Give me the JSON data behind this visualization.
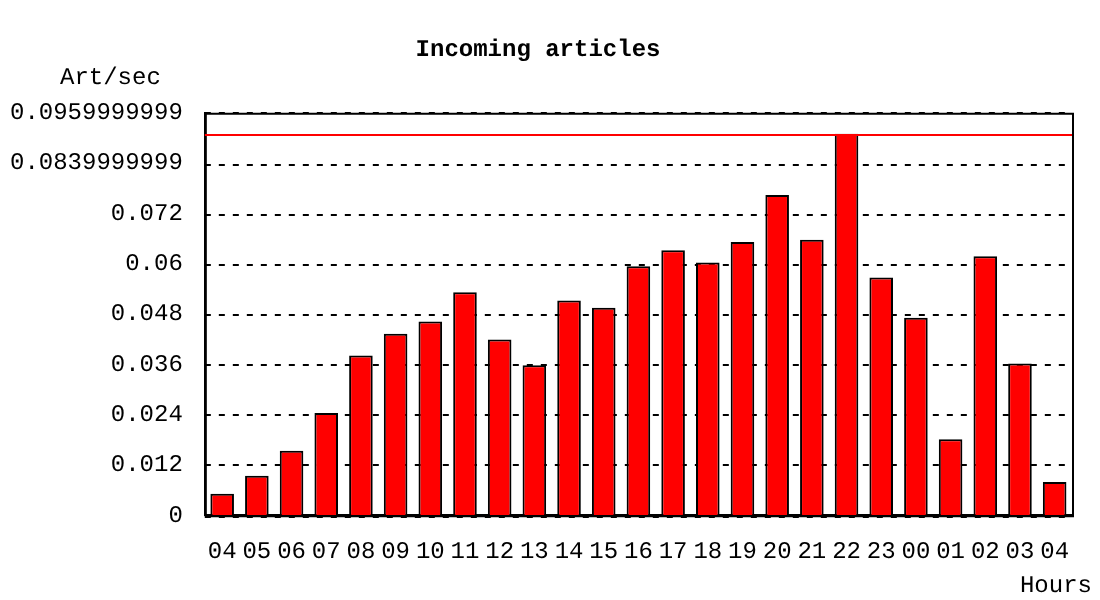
{
  "chart_data": {
    "type": "bar",
    "title": "Incoming articles",
    "ylabel": "Art/sec",
    "xlabel": "Hours",
    "categories": [
      "04",
      "05",
      "06",
      "07",
      "08",
      "09",
      "10",
      "11",
      "12",
      "13",
      "14",
      "15",
      "16",
      "17",
      "18",
      "19",
      "20",
      "21",
      "22",
      "23",
      "00",
      "01",
      "02",
      "03",
      "04"
    ],
    "series": [
      {
        "color": "#ff0000",
        "values": [
          0.0051,
          0.0094,
          0.0154,
          0.0244,
          0.0381,
          0.0433,
          0.0462,
          0.0532,
          0.0419,
          0.0358,
          0.0512,
          0.0495,
          0.0594,
          0.0632,
          0.0603,
          0.0652,
          0.0764,
          0.0657,
          0.091,
          0.0567,
          0.0471,
          0.0181,
          0.0618,
          0.0362,
          0.0079
        ]
      }
    ],
    "ylim": [
      0,
      0.0959999999
    ],
    "yticks": [
      0,
      0.012,
      0.024,
      0.036,
      0.048,
      0.06,
      0.072,
      0.0839999999,
      0.0959999999
    ],
    "ref_lines": [
      {
        "axis": "y",
        "value": 0.091,
        "color": "#ff0000"
      }
    ],
    "grid": "y",
    "legend": false
  }
}
